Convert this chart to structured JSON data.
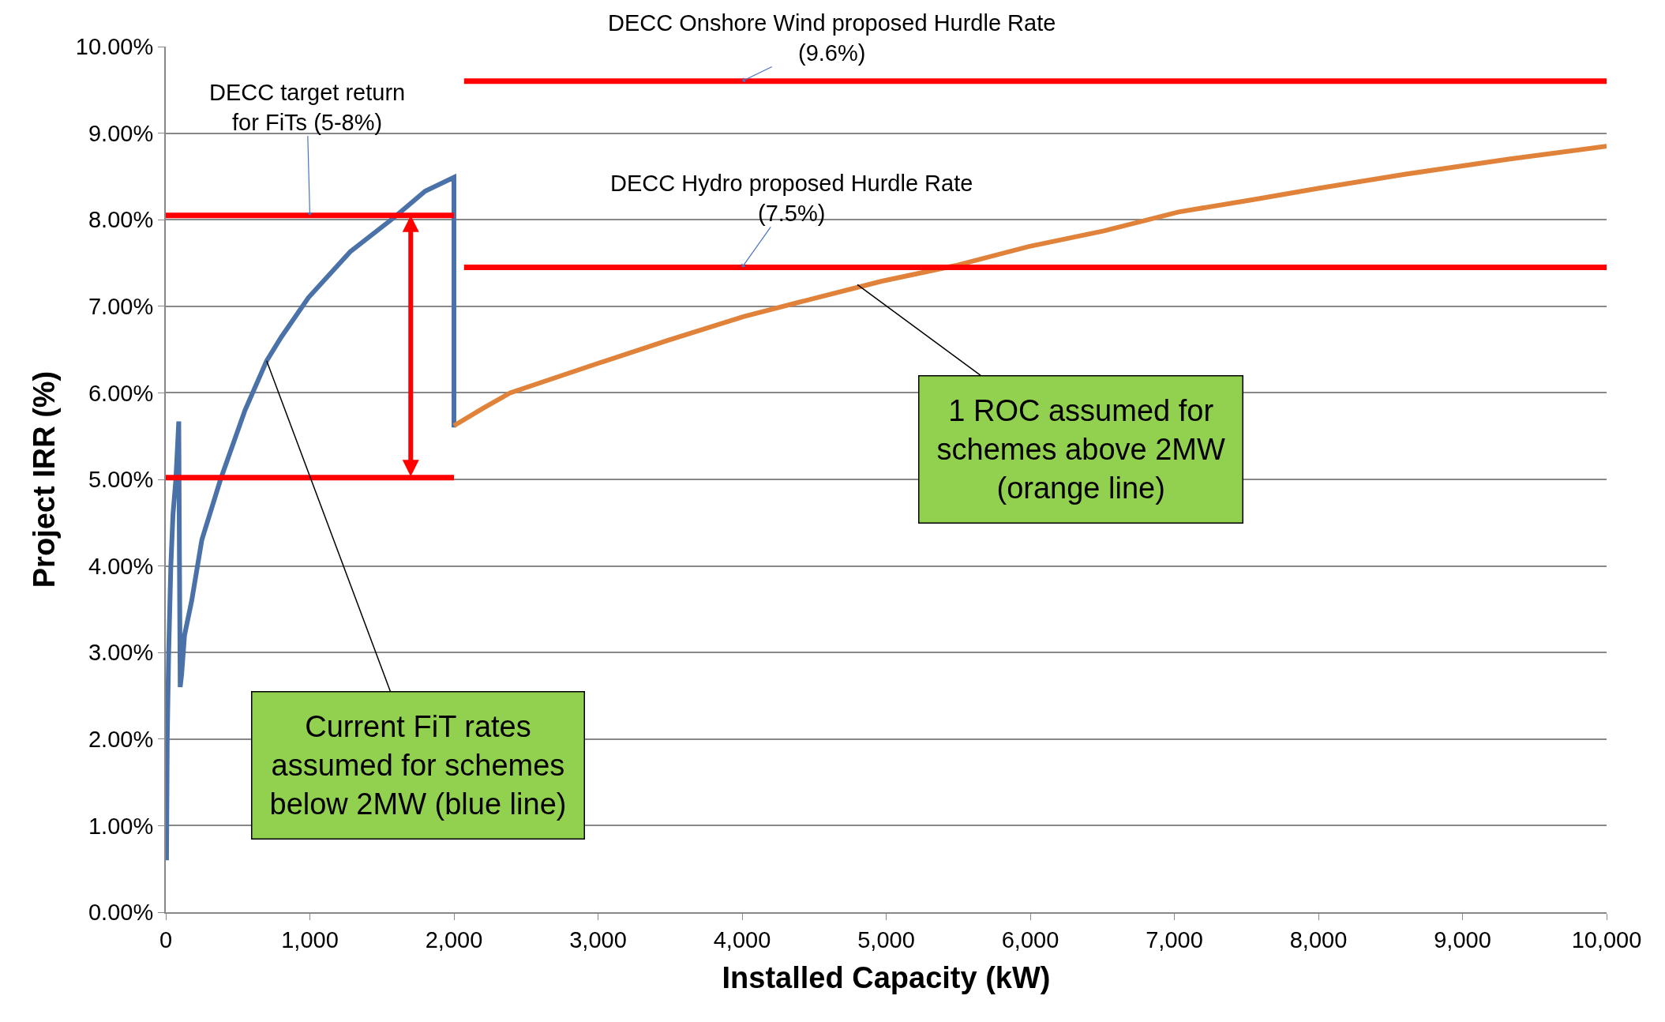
{
  "chart_data": {
    "type": "line",
    "xlabel": "Installed Capacity (kW)",
    "ylabel": "Project IRR (%)",
    "series": [
      {
        "color": "#4a72a8",
        "x": [
          5,
          10,
          20,
          35,
          50,
          70,
          90,
          95,
          100,
          110,
          130,
          180,
          250,
          380,
          550,
          700,
          800,
          990,
          1280,
          1580,
          1800,
          2000,
          2000
        ],
        "values": [
          0.6,
          2.0,
          3.0,
          4.0,
          4.6,
          5.0,
          5.67,
          4.0,
          2.6,
          2.75,
          3.2,
          3.6,
          4.3,
          5.0,
          5.8,
          6.37,
          6.64,
          7.1,
          7.63,
          8.02,
          8.33,
          8.49,
          5.6
        ]
      },
      {
        "color": "#e0823a",
        "x": [
          2000,
          2200,
          2390,
          2980,
          3490,
          4010,
          4520,
          4970,
          5480,
          5990,
          6510,
          7030,
          7540,
          7990,
          8580,
          9320,
          10000
        ],
        "values": [
          5.62,
          5.82,
          6.0,
          6.33,
          6.61,
          6.88,
          7.1,
          7.29,
          7.47,
          7.69,
          7.87,
          8.09,
          8.23,
          8.36,
          8.52,
          8.7,
          8.85
        ]
      },
      {
        "color": "#ff0000",
        "x": [
          0,
          2000
        ],
        "values": [
          8.05,
          8.05
        ]
      },
      {
        "color": "#ff0000",
        "x": [
          0,
          2000
        ],
        "values": [
          5.02,
          5.02
        ]
      },
      {
        "color": "#ff0000",
        "x": [
          2070,
          10000
        ],
        "values": [
          9.6,
          9.6
        ]
      },
      {
        "color": "#ff0000",
        "x": [
          2070,
          10000
        ],
        "values": [
          7.45,
          7.45
        ]
      }
    ],
    "xlim": [
      0,
      10000
    ],
    "xticks": [
      0,
      {
        "value": 1000,
        "label": "1,000"
      },
      {
        "value": 2000,
        "label": "2,000"
      },
      {
        "value": 3000,
        "label": "3,000"
      },
      {
        "value": 4000,
        "label": "4,000"
      },
      {
        "value": 5000,
        "label": "5,000"
      },
      {
        "value": 6000,
        "label": "6,000"
      },
      {
        "value": 7000,
        "label": "7,000"
      },
      {
        "value": 8000,
        "label": "8,000"
      },
      {
        "value": 9000,
        "label": "9,000"
      },
      {
        "value": 10000,
        "label": "10,000"
      }
    ],
    "ylim": [
      0,
      10
    ],
    "yticks": [
      {
        "value": 0,
        "label": "0.00%"
      },
      {
        "value": 1,
        "label": "1.00%"
      },
      {
        "value": 2,
        "label": "2.00%"
      },
      {
        "value": 3,
        "label": "3.00%"
      },
      {
        "value": 4,
        "label": "4.00%"
      },
      {
        "value": 5,
        "label": "5.00%"
      },
      {
        "value": 6,
        "label": "6.00%"
      },
      {
        "value": 7,
        "label": "7.00%"
      },
      {
        "value": 8,
        "label": "8.00%"
      },
      {
        "value": 9,
        "label": "9.00%"
      },
      {
        "value": 10,
        "label": "10.00%"
      }
    ],
    "grid": "y",
    "marker": "none",
    "line_style": "solid",
    "annotations": [
      {
        "text": "DECC target return\nfor FiTs (5-8%)",
        "x": 1000,
        "y": 8.05
      },
      {
        "text": "DECC Onshore Wind proposed Hurdle Rate\n(9.6%)",
        "x": 4000,
        "y": 9.6
      },
      {
        "text": "DECC Hydro proposed Hurdle Rate\n(7.5%)",
        "x": 4000,
        "y": 7.45
      },
      {
        "text": "Current FiT rates\nassumed for schemes\nbelow 2MW (blue line)",
        "x": 700,
        "y": 6.37
      },
      {
        "text": "1 ROC assumed for\nschemes above 2MW\n(orange line)",
        "x": 4800,
        "y": 7.25
      }
    ]
  }
}
